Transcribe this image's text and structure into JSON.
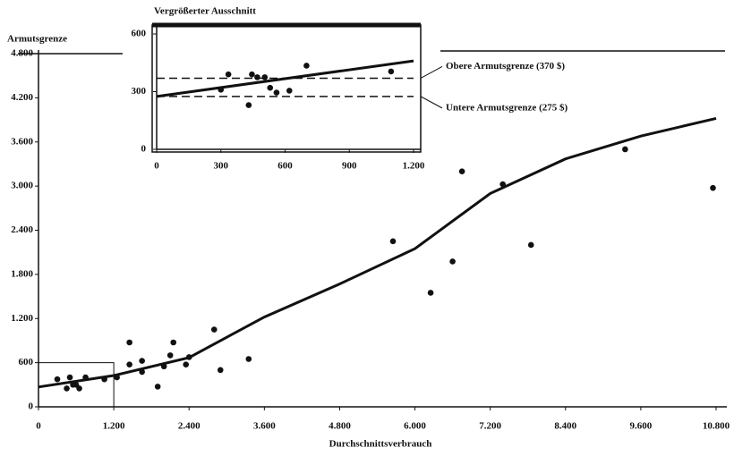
{
  "chart_data": [
    {
      "type": "scatter",
      "ylabel": "Armutsgrenze",
      "xlabel": "Durchschnittsverbrauch",
      "xlim": [
        0,
        10800
      ],
      "xticks": [
        0,
        {
          "value": 1200,
          "label": "1.200"
        },
        {
          "value": 2400,
          "label": "2.400"
        },
        {
          "value": 3600,
          "label": "3.600"
        },
        {
          "value": 4800,
          "label": "4.800"
        },
        {
          "value": 6000,
          "label": "6.000"
        },
        {
          "value": 7200,
          "label": "7.200"
        },
        {
          "value": 8400,
          "label": "8.400"
        },
        {
          "value": 9600,
          "label": "9.600"
        },
        {
          "value": 10800,
          "label": "10.800"
        }
      ],
      "ylim": [
        0,
        4800
      ],
      "yticks": [
        0,
        600,
        {
          "value": 1200,
          "label": "1.200"
        },
        {
          "value": 1800,
          "label": "1.800"
        },
        {
          "value": 2400,
          "label": "2.400"
        },
        {
          "value": 3000,
          "label": "3.000"
        },
        {
          "value": 3600,
          "label": "3.600"
        },
        {
          "value": 4200,
          "label": "4.200"
        },
        {
          "value": 4800,
          "label": "4.800"
        }
      ],
      "color": "#111111",
      "points": {
        "x": [
          300,
          450,
          500,
          550,
          600,
          650,
          750,
          1050,
          1250,
          1450,
          1450,
          1650,
          1650,
          1900,
          2000,
          2100,
          2150,
          2350,
          2400,
          2800,
          2900,
          3350,
          5650,
          6250,
          6600,
          6750,
          7400,
          7850,
          9350,
          10750
        ],
        "y": [
          375,
          250,
          400,
          300,
          300,
          250,
          400,
          375,
          400,
          875,
          575,
          625,
          475,
          275,
          550,
          700,
          875,
          575,
          675,
          1050,
          500,
          650,
          2250,
          1550,
          1975,
          3200,
          3025,
          2200,
          3500,
          2975
        ]
      },
      "curve": {
        "x": [
          0,
          1200,
          2400,
          3600,
          4800,
          6000,
          7200,
          8400,
          9600,
          10800
        ],
        "y": [
          270,
          425,
          670,
          1220,
          1670,
          2150,
          2900,
          3370,
          3680,
          3920
        ]
      }
    },
    {
      "type": "scatter",
      "title": "Vergrößerter Ausschnitt",
      "xlim": [
        0,
        1200
      ],
      "xticks": [
        0,
        300,
        600,
        900,
        {
          "value": 1200,
          "label": "1.200"
        }
      ],
      "ylim": [
        0,
        600
      ],
      "yticks": [
        0,
        300,
        600
      ],
      "points": {
        "x": [
          300,
          335,
          445,
          470,
          505,
          530,
          560,
          620,
          430,
          700,
          1095
        ],
        "y": [
          310,
          390,
          390,
          375,
          375,
          320,
          295,
          305,
          230,
          435,
          405
        ]
      },
      "line": {
        "x": [
          0,
          1200
        ],
        "y": [
          275,
          460
        ]
      },
      "thresholds": [
        {
          "label": "Obere Armutsgrenze (370 $)",
          "value": 370
        },
        {
          "label": "Untere Armutsgrenze (275 $)",
          "value": 275
        }
      ]
    }
  ]
}
